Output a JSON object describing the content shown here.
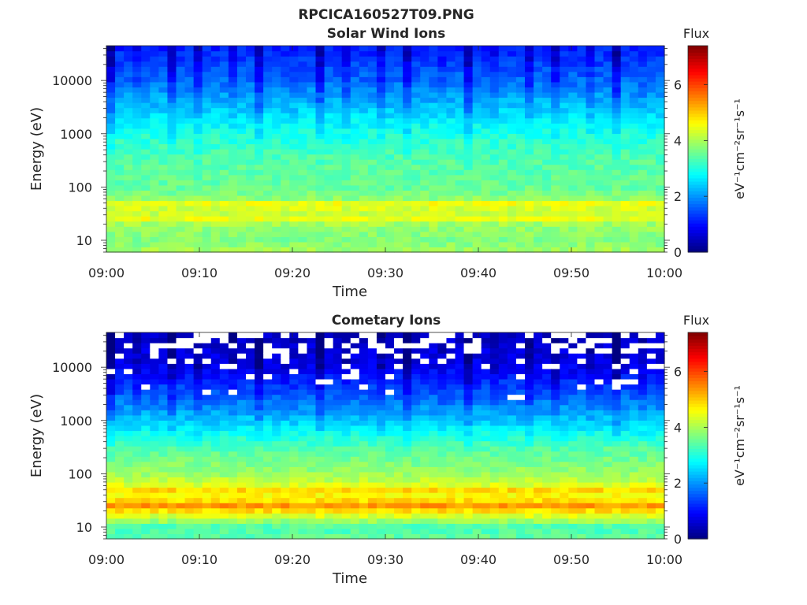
{
  "figure": {
    "filename": "RPCICA160527T09.PNG"
  },
  "chart_data": [
    {
      "type": "heatmap",
      "title": "Solar Wind Ions",
      "xlabel": "Time",
      "ylabel": "Energy (eV)",
      "x_ticks": [
        "09:00",
        "09:10",
        "09:20",
        "09:30",
        "09:40",
        "09:50",
        "10:00"
      ],
      "xlim": [
        "09:00",
        "10:00"
      ],
      "y_scale": "log",
      "y_ticks": [
        10,
        100,
        1000,
        10000
      ],
      "y_tick_labels": [
        "10",
        "100",
        "1000",
        "10000"
      ],
      "ylim": [
        6,
        45000
      ],
      "time_bins": 64,
      "energy_bins": 40,
      "sweep_period_minutes": 3.2,
      "clim": [
        0,
        7.4
      ],
      "colormap": "jet",
      "colorbar": {
        "title": "Flux",
        "label": "eV⁻¹cm⁻²sr⁻¹s⁻¹",
        "ticks": [
          0,
          2,
          4,
          6
        ],
        "tick_labels": [
          "0",
          "2",
          "4",
          "6"
        ]
      },
      "flux_profile": [
        {
          "energy": 6,
          "flux": 4.0
        },
        {
          "energy": 10,
          "flux": 3.7
        },
        {
          "energy": 20,
          "flux": 3.9
        },
        {
          "energy": 28,
          "flux": 4.7
        },
        {
          "energy": 36,
          "flux": 3.8
        },
        {
          "energy": 45,
          "flux": 4.9
        },
        {
          "energy": 60,
          "flux": 3.8
        },
        {
          "energy": 100,
          "flux": 3.5
        },
        {
          "energy": 300,
          "flux": 3.4
        },
        {
          "energy": 1000,
          "flux": 3.0
        },
        {
          "energy": 3000,
          "flux": 2.4
        },
        {
          "energy": 10000,
          "flux": 1.7
        },
        {
          "energy": 45000,
          "flux": 1.1
        }
      ],
      "missing_fraction_top": 0.0
    },
    {
      "type": "heatmap",
      "title": "Cometary Ions",
      "xlabel": "Time",
      "ylabel": "Energy (eV)",
      "x_ticks": [
        "09:00",
        "09:10",
        "09:20",
        "09:30",
        "09:40",
        "09:50",
        "10:00"
      ],
      "xlim": [
        "09:00",
        "10:00"
      ],
      "y_scale": "log",
      "y_ticks": [
        10,
        100,
        1000,
        10000
      ],
      "y_tick_labels": [
        "10",
        "100",
        "1000",
        "10000"
      ],
      "ylim": [
        6,
        45000
      ],
      "time_bins": 64,
      "energy_bins": 40,
      "sweep_period_minutes": 3.2,
      "clim": [
        0,
        7.4
      ],
      "colormap": "jet",
      "colorbar": {
        "title": "Flux",
        "label": "eV⁻¹cm⁻²sr⁻¹s⁻¹",
        "ticks": [
          0,
          2,
          4,
          6
        ],
        "tick_labels": [
          "0",
          "2",
          "4",
          "6"
        ]
      },
      "flux_profile": [
        {
          "energy": 6,
          "flux": 3.5
        },
        {
          "energy": 10,
          "flux": 3.3
        },
        {
          "energy": 20,
          "flux": 4.8
        },
        {
          "energy": 28,
          "flux": 5.6
        },
        {
          "energy": 36,
          "flux": 4.2
        },
        {
          "energy": 45,
          "flux": 5.2
        },
        {
          "energy": 60,
          "flux": 4.4
        },
        {
          "energy": 100,
          "flux": 3.9
        },
        {
          "energy": 300,
          "flux": 3.4
        },
        {
          "energy": 1000,
          "flux": 2.4
        },
        {
          "energy": 3000,
          "flux": 1.6
        },
        {
          "energy": 10000,
          "flux": 0.8
        },
        {
          "energy": 45000,
          "flux": 0.5
        }
      ],
      "missing_fraction_top": 0.35
    }
  ]
}
